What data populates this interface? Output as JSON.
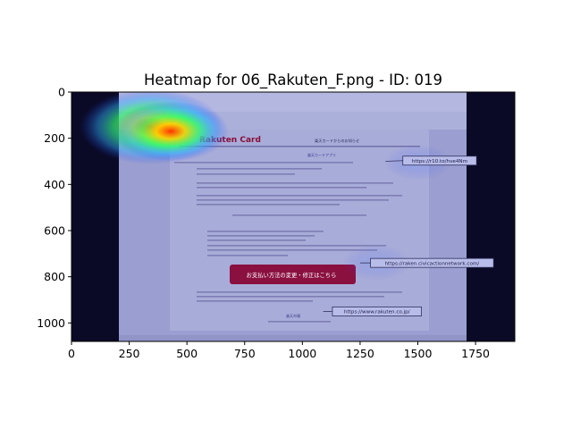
{
  "chart_data": {
    "type": "heatmap",
    "title": "Heatmap for 06_Rakuten_F.png - ID: 019",
    "xlabel": "",
    "ylabel": "",
    "xlim": [
      0,
      1920
    ],
    "ylim": [
      1080,
      0
    ],
    "xticks": [
      0,
      250,
      500,
      750,
      1000,
      1250,
      1500,
      1750
    ],
    "yticks": [
      0,
      200,
      400,
      600,
      800,
      1000
    ],
    "grid": false,
    "colormap": "jet overlay on screenshot",
    "hotspots": [
      {
        "x": 345,
        "y": 150,
        "intensity": 1.0
      },
      {
        "x": 430,
        "y": 170,
        "intensity": 0.75
      },
      {
        "x": 1500,
        "y": 305,
        "intensity": 0.25
      },
      {
        "x": 1320,
        "y": 740,
        "intensity": 0.15
      }
    ],
    "background_image": {
      "extent_x": [
        205,
        1710
      ],
      "extent_y": [
        0,
        1080
      ],
      "brand": "Rakuten Card",
      "heading": "楽天カードからのお知らせ",
      "app_line": "楽天カードアプリ",
      "cta_button": "お支払い方法の変更・修正はこちら",
      "footer_brand": "楽天市場",
      "annotations": [
        {
          "text": "https://r10.to/hve4Nm",
          "x": 1435,
          "y": 297
        },
        {
          "text": "https://raken.civicactionnetwork.com/",
          "x": 1295,
          "y": 740
        },
        {
          "text": "https://www.rakuten.co.jp/",
          "x": 1130,
          "y": 950
        }
      ]
    }
  }
}
